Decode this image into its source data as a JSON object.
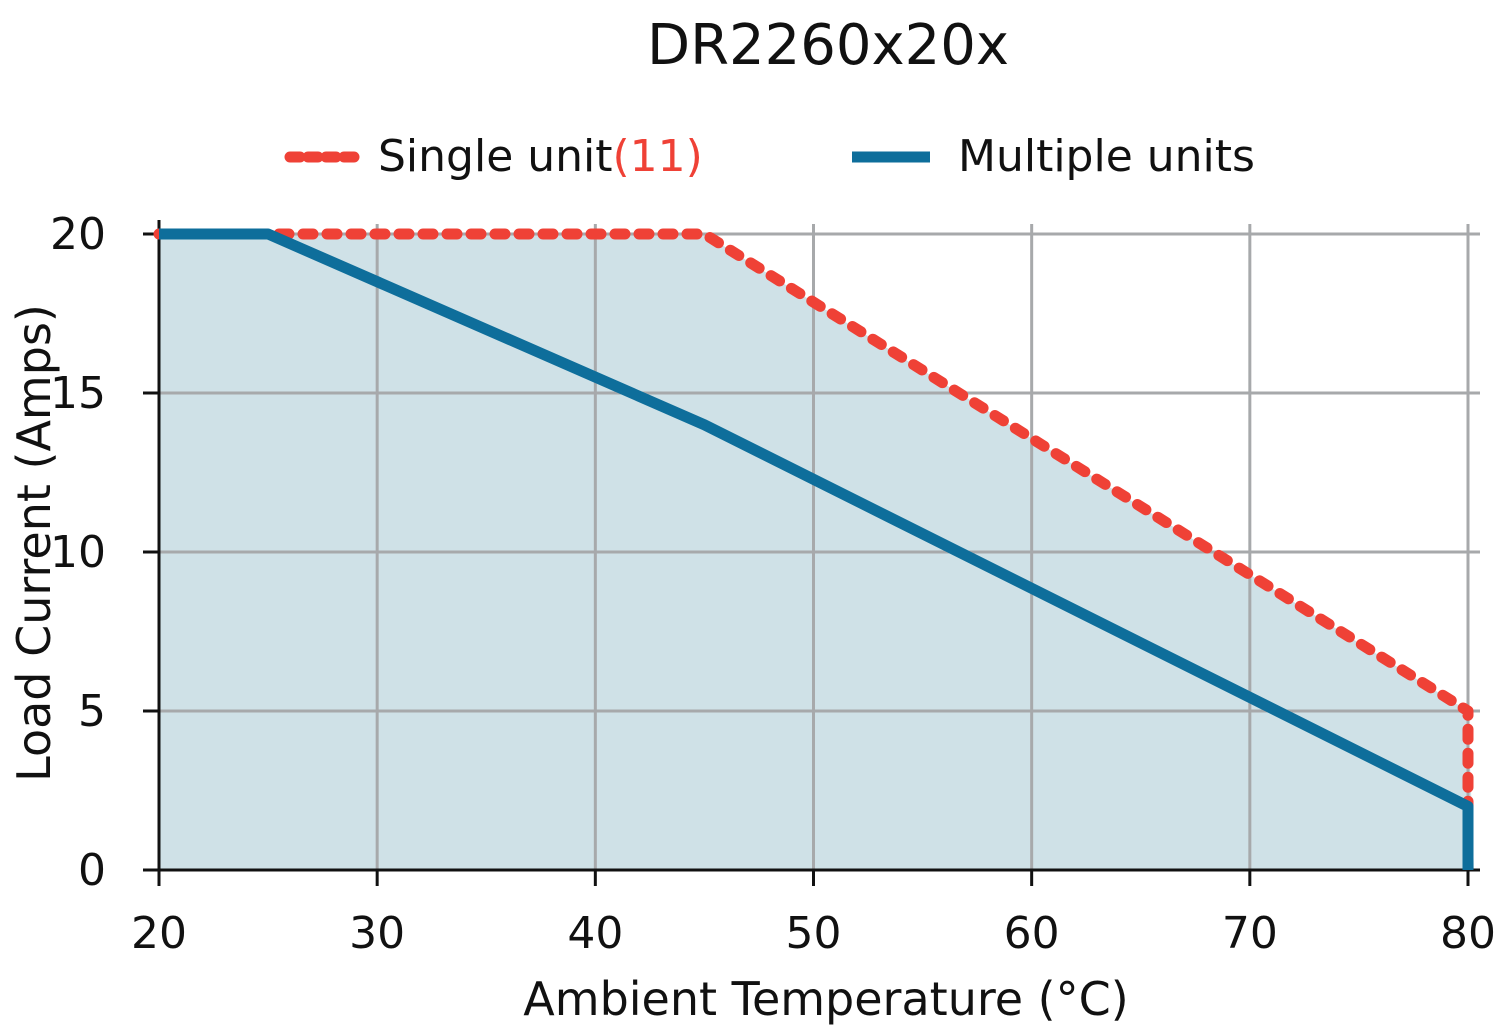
{
  "chart_data": {
    "type": "line",
    "title": "DR2260x20x",
    "xlabel": "Ambient Temperature (°C)",
    "ylabel": "Load Current (Amps)",
    "xlim": [
      20,
      80
    ],
    "ylim": [
      0,
      20
    ],
    "x_ticks": [
      20,
      30,
      40,
      50,
      60,
      70,
      80
    ],
    "y_ticks": [
      0,
      5,
      10,
      15,
      20
    ],
    "grid": true,
    "legend_position": "top",
    "fill_under_upper_curve": true,
    "colors": {
      "single": "#ef4136",
      "multiple": "#0e6e9b",
      "fill": "#cfe1e7",
      "grid": "#a7a9ab"
    },
    "series": [
      {
        "name": "Single unit",
        "name_note": "(11)",
        "style": "dashed",
        "x": [
          20,
          45,
          80,
          80
        ],
        "y": [
          20,
          20,
          5,
          0
        ]
      },
      {
        "name": "Multiple units",
        "style": "solid",
        "x": [
          20,
          25,
          45,
          80,
          80
        ],
        "y": [
          20,
          20,
          14,
          2,
          0
        ]
      }
    ]
  }
}
